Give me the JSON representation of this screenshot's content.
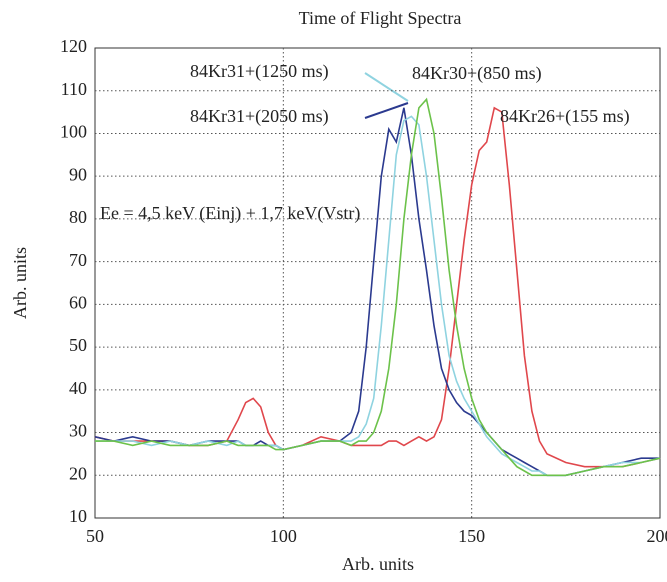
{
  "chart_data": {
    "type": "line",
    "title": "Time of Flight Spectra",
    "xlabel": "Arb. units",
    "ylabel": "Arb. units",
    "annotation": "Ee = 4,5 keV (Einj) + 1,7 keV(Vstr)",
    "xlim": [
      50,
      200
    ],
    "ylim": [
      10,
      120
    ],
    "xticks": [
      50,
      100,
      150,
      200
    ],
    "yticks": [
      10,
      20,
      30,
      40,
      50,
      60,
      70,
      80,
      90,
      100,
      110,
      120
    ],
    "grid": true,
    "x": [
      50,
      55,
      60,
      65,
      70,
      75,
      80,
      85,
      88,
      90,
      92,
      94,
      96,
      98,
      100,
      105,
      110,
      115,
      118,
      120,
      122,
      124,
      126,
      128,
      130,
      132,
      134,
      136,
      138,
      140,
      142,
      144,
      146,
      148,
      150,
      152,
      154,
      156,
      158,
      160,
      162,
      164,
      166,
      168,
      170,
      175,
      180,
      185,
      190,
      195,
      200
    ],
    "series": [
      {
        "name": "84Kr26+(155 ms)",
        "color": "#e0474c",
        "values": [
          29,
          28,
          28,
          28,
          28,
          27,
          27,
          28,
          33,
          37,
          38,
          36,
          30,
          27,
          26,
          27,
          29,
          28,
          27,
          27,
          27,
          27,
          27,
          28,
          28,
          27,
          28,
          29,
          28,
          29,
          33,
          45,
          60,
          75,
          88,
          96,
          98,
          106,
          105,
          88,
          68,
          48,
          35,
          28,
          25,
          23,
          22,
          22,
          22,
          23,
          24
        ]
      },
      {
        "name": "84Kr31+(2050 ms)",
        "color": "#2b3a8f",
        "values": [
          29,
          28,
          29,
          28,
          28,
          27,
          28,
          28,
          28,
          27,
          27,
          28,
          27,
          27,
          26,
          27,
          28,
          28,
          30,
          35,
          50,
          70,
          90,
          101,
          98,
          106,
          95,
          80,
          68,
          55,
          45,
          40,
          37,
          35,
          34,
          32,
          30,
          28,
          26,
          25,
          24,
          23,
          22,
          21,
          20,
          20,
          21,
          22,
          23,
          24,
          24
        ]
      },
      {
        "name": "84Kr31+(1250 ms)",
        "color": "#8fd3e0",
        "values": [
          28,
          28,
          28,
          27,
          28,
          27,
          28,
          27,
          28,
          27,
          27,
          27,
          27,
          27,
          26,
          27,
          28,
          28,
          28,
          29,
          32,
          38,
          55,
          75,
          95,
          103,
          104,
          102,
          90,
          75,
          60,
          48,
          42,
          38,
          35,
          32,
          29,
          27,
          25,
          24,
          23,
          22,
          21,
          21,
          20,
          20,
          21,
          22,
          23,
          23,
          24
        ]
      },
      {
        "name": "84Kr30+(850 ms)",
        "color": "#6cc24a",
        "values": [
          28,
          28,
          27,
          28,
          27,
          27,
          27,
          28,
          27,
          27,
          27,
          27,
          27,
          26,
          26,
          27,
          28,
          28,
          27,
          28,
          28,
          30,
          35,
          45,
          60,
          80,
          95,
          106,
          108,
          100,
          85,
          68,
          55,
          45,
          38,
          33,
          30,
          28,
          26,
          24,
          22,
          21,
          20,
          20,
          20,
          20,
          21,
          22,
          22,
          23,
          24
        ]
      }
    ]
  }
}
